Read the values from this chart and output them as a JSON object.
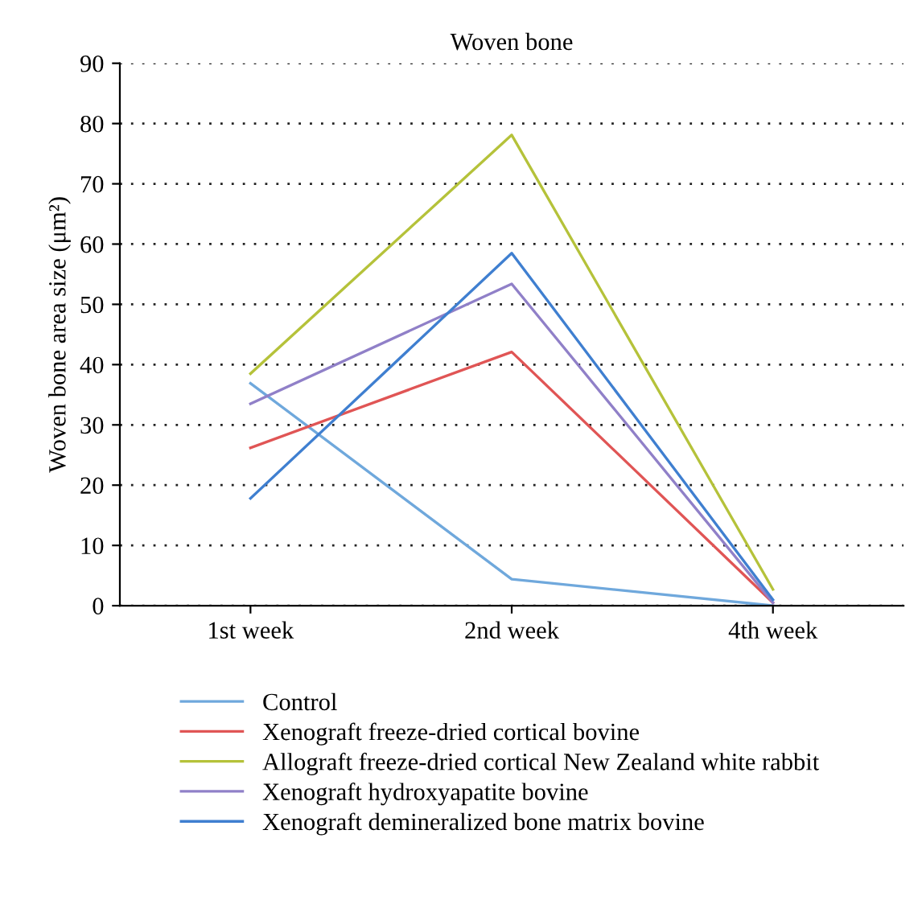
{
  "chart_data": {
    "type": "line",
    "title": "Woven bone",
    "ylabel": "Woven bone area size (μm²)",
    "categories": [
      "1st week",
      "2nd week",
      "4th week"
    ],
    "ylim": [
      0,
      90
    ],
    "yticks": [
      0,
      10,
      20,
      30,
      40,
      50,
      60,
      70,
      80,
      90
    ],
    "grid": "y",
    "legend": "bottom",
    "marker": "none",
    "line_style": "solid",
    "series": [
      {
        "name": "Control",
        "color": "#6fa8dc",
        "values": [
          36.9,
          4.4,
          0
        ]
      },
      {
        "name": "Xenograft freeze-dried cortical bovine",
        "color": "#e05555",
        "values": [
          26.2,
          42.1,
          0.5
        ]
      },
      {
        "name": "Allograft freeze-dried cortical New Zealand white rabbit",
        "color": "#b5c23a",
        "values": [
          38.5,
          78.1,
          2.7
        ]
      },
      {
        "name": "Xenograft hydroxyapatite bovine",
        "color": "#9080c8",
        "values": [
          33.5,
          53.4,
          0.5
        ]
      },
      {
        "name": "Xenograft demineralized bone matrix bovine",
        "color": "#3f7fd0",
        "values": [
          17.8,
          58.5,
          1
        ]
      }
    ]
  }
}
